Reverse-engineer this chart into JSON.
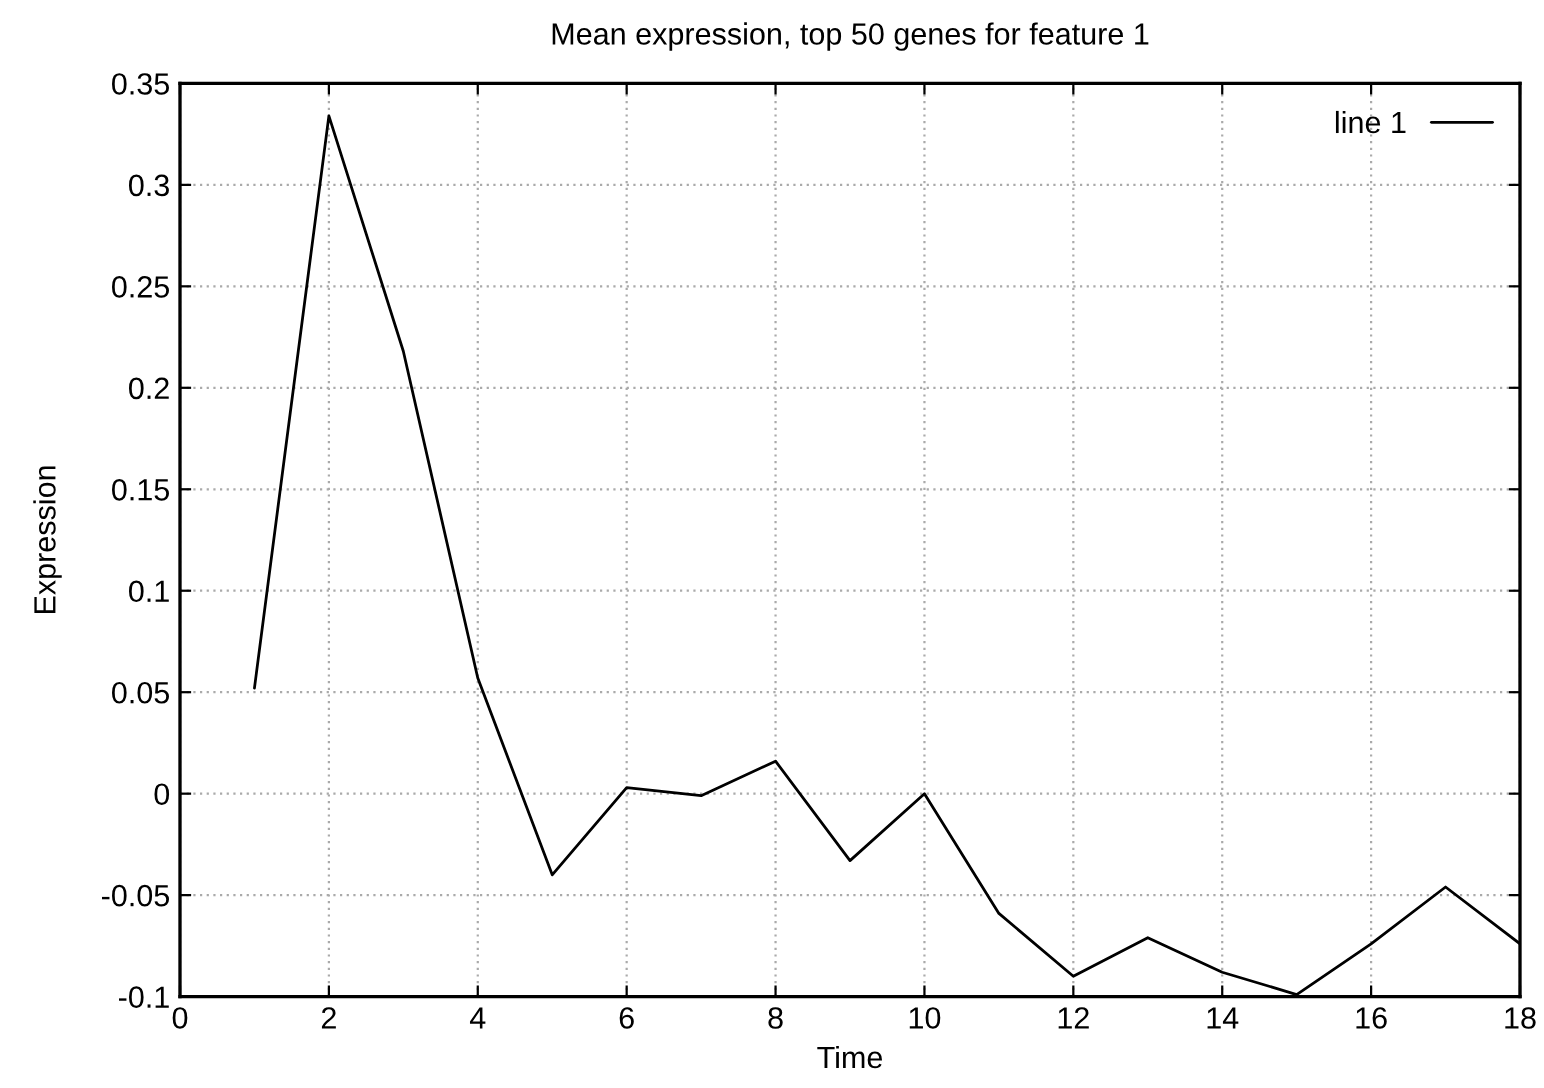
{
  "chart_data": {
    "type": "line",
    "title": "Mean expression, top 50 genes for feature 1",
    "xlabel": "Time",
    "ylabel": "Expression",
    "x": [
      1,
      2,
      3,
      4,
      5,
      6,
      7,
      8,
      9,
      10,
      11,
      12,
      13,
      14,
      15,
      16,
      17,
      18
    ],
    "series": [
      {
        "name": "line 1",
        "color": "#000000",
        "values": [
          0.052,
          0.334,
          0.218,
          0.057,
          -0.04,
          0.003,
          -0.001,
          0.016,
          -0.033,
          0.0,
          -0.059,
          -0.09,
          -0.071,
          -0.088,
          -0.099,
          -0.074,
          -0.046,
          -0.074
        ]
      }
    ],
    "xlim": [
      0,
      18
    ],
    "xticks": [
      0,
      2,
      4,
      6,
      8,
      10,
      12,
      14,
      16,
      18
    ],
    "ylim": [
      -0.1,
      0.35
    ],
    "yticks": [
      -0.1,
      -0.05,
      0,
      0.05,
      0.1,
      0.15,
      0.2,
      0.25,
      0.3,
      0.35
    ],
    "grid": true,
    "legend": "top right",
    "marker": "none",
    "line_style": "solid"
  }
}
